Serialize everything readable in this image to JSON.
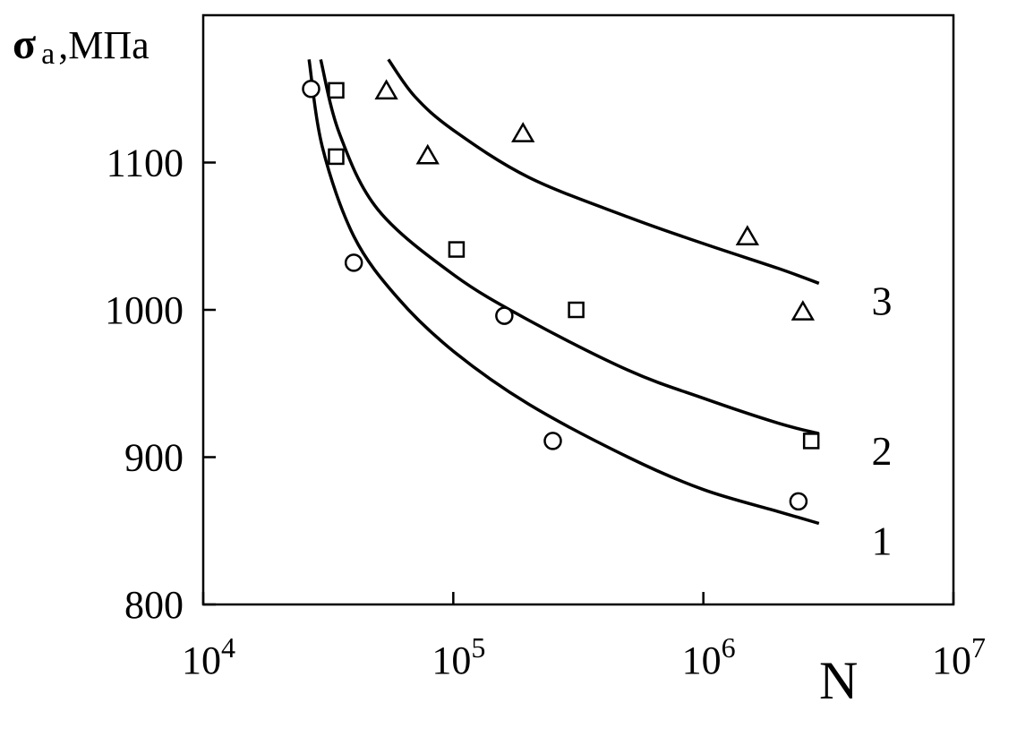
{
  "chart_data": {
    "type": "scatter",
    "title": "",
    "ylabel": {
      "symbol": "σ",
      "subscript": "a",
      "unit": ",МПа"
    },
    "xlabel": "N",
    "xscale": "log",
    "xlim": [
      10000,
      10000000
    ],
    "ylim": [
      800,
      1200
    ],
    "grid": false,
    "x_ticks": [
      {
        "base": "10",
        "exp": "4",
        "value": 10000
      },
      {
        "base": "10",
        "exp": "5",
        "value": 100000
      },
      {
        "base": "10",
        "exp": "6",
        "value": 1000000
      },
      {
        "base": "10",
        "exp": "7",
        "value": 10000000
      }
    ],
    "y_ticks": [
      {
        "label": "800",
        "value": 800
      },
      {
        "label": "900",
        "value": 900
      },
      {
        "label": "1000",
        "value": 1000
      },
      {
        "label": "1100",
        "value": 1100
      }
    ],
    "colors": {
      "ink": "#000000",
      "background": "#ffffff"
    },
    "series": [
      {
        "name": "1",
        "marker": "circle",
        "points": [
          {
            "x": 27000,
            "y": 1150
          },
          {
            "x": 40000,
            "y": 1032
          },
          {
            "x": 160000,
            "y": 996
          },
          {
            "x": 250000,
            "y": 911
          },
          {
            "x": 2400000,
            "y": 870
          }
        ],
        "curve": [
          {
            "x": 26500,
            "y": 1170
          },
          {
            "x": 30000,
            "y": 1110
          },
          {
            "x": 40000,
            "y": 1050
          },
          {
            "x": 60000,
            "y": 1008
          },
          {
            "x": 100000,
            "y": 972
          },
          {
            "x": 200000,
            "y": 936
          },
          {
            "x": 500000,
            "y": 900
          },
          {
            "x": 1000000,
            "y": 878
          },
          {
            "x": 2000000,
            "y": 863
          },
          {
            "x": 2900000,
            "y": 855
          }
        ]
      },
      {
        "name": "2",
        "marker": "square",
        "points": [
          {
            "x": 34000,
            "y": 1149
          },
          {
            "x": 34000,
            "y": 1104
          },
          {
            "x": 103000,
            "y": 1041
          },
          {
            "x": 310000,
            "y": 1000
          },
          {
            "x": 2700000,
            "y": 911
          }
        ],
        "curve": [
          {
            "x": 29500,
            "y": 1170
          },
          {
            "x": 35000,
            "y": 1120
          },
          {
            "x": 50000,
            "y": 1068
          },
          {
            "x": 100000,
            "y": 1024
          },
          {
            "x": 200000,
            "y": 993
          },
          {
            "x": 500000,
            "y": 959
          },
          {
            "x": 1000000,
            "y": 940
          },
          {
            "x": 2000000,
            "y": 923
          },
          {
            "x": 2900000,
            "y": 916
          }
        ]
      },
      {
        "name": "3",
        "marker": "triangle",
        "points": [
          {
            "x": 54000,
            "y": 1149
          },
          {
            "x": 79000,
            "y": 1105
          },
          {
            "x": 190000,
            "y": 1120
          },
          {
            "x": 1500000,
            "y": 1050
          },
          {
            "x": 2500000,
            "y": 999
          }
        ],
        "curve": [
          {
            "x": 55000,
            "y": 1170
          },
          {
            "x": 70000,
            "y": 1145
          },
          {
            "x": 100000,
            "y": 1122
          },
          {
            "x": 200000,
            "y": 1090
          },
          {
            "x": 500000,
            "y": 1063
          },
          {
            "x": 1000000,
            "y": 1045
          },
          {
            "x": 2000000,
            "y": 1028
          },
          {
            "x": 2900000,
            "y": 1018
          }
        ]
      }
    ]
  }
}
